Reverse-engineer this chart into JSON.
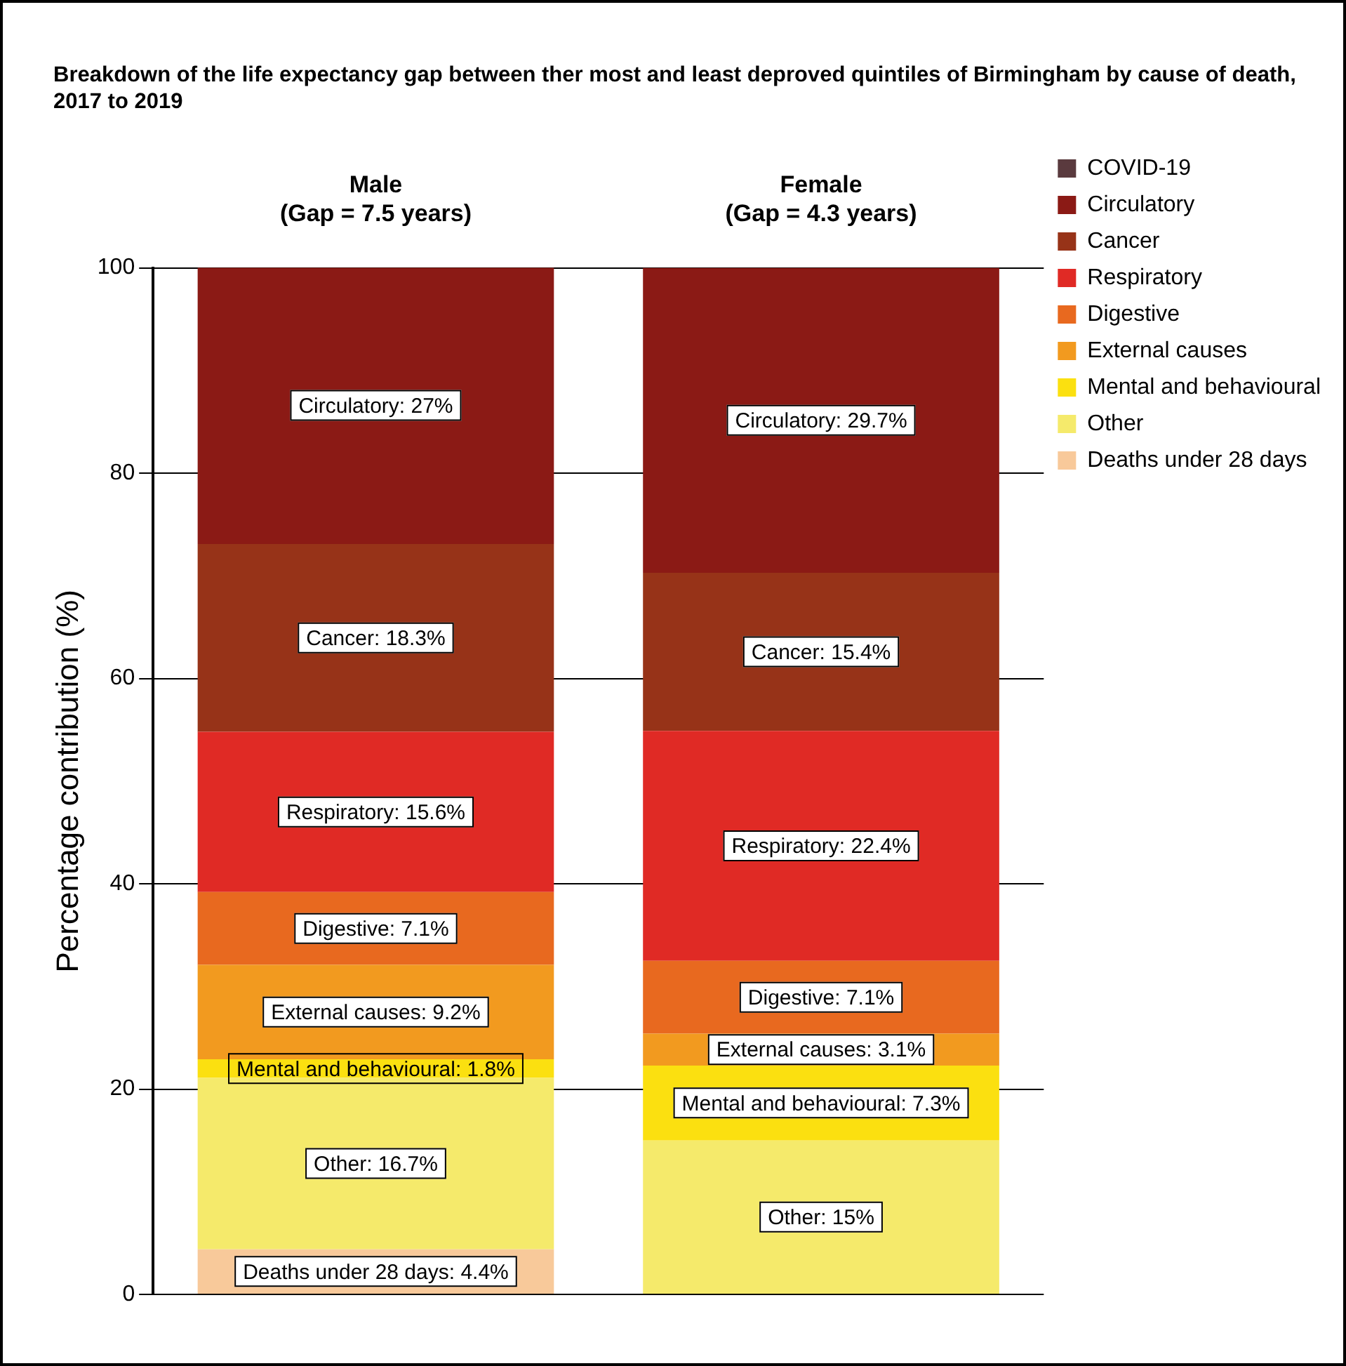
{
  "chart_data": {
    "type": "bar",
    "stacked": true,
    "title": "Breakdown of the life expectancy gap between ther most and least deproved quintiles of Birmingham by cause of death, 2017 to 2019",
    "categories": [
      "Male\n(Gap = 7.5 years)",
      "Female\n(Gap = 4.3 years)"
    ],
    "ylabel": "Percentage contribution (%)",
    "ylim": [
      0,
      100
    ],
    "yticks": [
      0,
      20,
      40,
      60,
      80,
      100
    ],
    "grid": "y",
    "legend": "right",
    "series": [
      {
        "name": "Deaths under 28 days",
        "color": "#f8c99a",
        "values": [
          4.4,
          null
        ],
        "value_labels": [
          "Deaths under 28 days: 4.4%",
          null
        ]
      },
      {
        "name": "Other",
        "color": "#f5ea6b",
        "values": [
          16.7,
          15
        ],
        "value_labels": [
          "Other: 16.7%",
          "Other: 15%"
        ]
      },
      {
        "name": "Mental and behavioural",
        "color": "#fbe010",
        "values": [
          1.8,
          7.3
        ],
        "value_labels": [
          "Mental and behavioural: 1.8%",
          "Mental and behavioural: 7.3%"
        ]
      },
      {
        "name": "External causes",
        "color": "#f29a1f",
        "values": [
          9.2,
          3.1
        ],
        "value_labels": [
          "External causes: 9.2%",
          "External causes: 3.1%"
        ]
      },
      {
        "name": "Digestive",
        "color": "#e8691f",
        "values": [
          7.1,
          7.1
        ],
        "value_labels": [
          "Digestive: 7.1%",
          "Digestive: 7.1%"
        ]
      },
      {
        "name": "Respiratory",
        "color": "#e02a25",
        "values": [
          15.6,
          22.4
        ],
        "value_labels": [
          "Respiratory: 15.6%",
          "Respiratory: 22.4%"
        ]
      },
      {
        "name": "Cancer",
        "color": "#973318",
        "values": [
          18.3,
          15.4
        ],
        "value_labels": [
          "Cancer: 18.3%",
          "Cancer: 15.4%"
        ]
      },
      {
        "name": "Circulatory",
        "color": "#8b1a15",
        "values": [
          27,
          29.7
        ],
        "value_labels": [
          "Circulatory: 27%",
          "Circulatory: 29.7%"
        ]
      },
      {
        "name": "COVID-19",
        "color": "#5a3a3e",
        "values": [
          null,
          null
        ]
      }
    ]
  }
}
